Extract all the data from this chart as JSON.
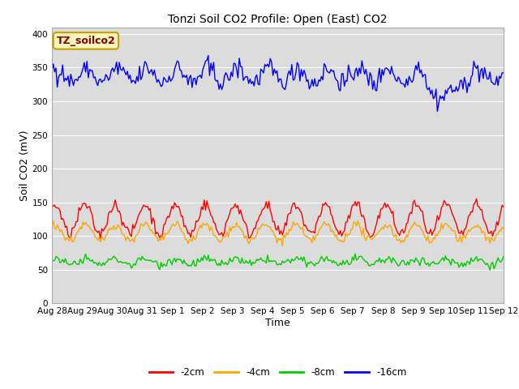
{
  "title": "Tonzi Soil CO2 Profile: Open (East) CO2",
  "xlabel": "Time",
  "ylabel": "Soil CO2 (mV)",
  "ylim": [
    0,
    410
  ],
  "yticks": [
    0,
    50,
    100,
    150,
    200,
    250,
    300,
    350,
    400
  ],
  "bg_color": "#dcdcdc",
  "legend_labels": [
    "-2cm",
    "-4cm",
    "-8cm",
    "-16cm"
  ],
  "legend_colors": [
    "#ff0000",
    "#ffa500",
    "#00cc00",
    "#0000ff"
  ],
  "annotation_text": "TZ_soilco2",
  "annotation_bg": "#f5f5be",
  "annotation_fg": "#8b0000",
  "annotation_border": "#c8a000",
  "n_points": 336,
  "seed": 42,
  "blue_mean": 338,
  "blue_amp": 12,
  "blue_noise": 7,
  "red_mean": 125,
  "red_amp": 22,
  "red_noise": 4,
  "orange_mean": 105,
  "orange_amp": 12,
  "orange_noise": 3,
  "green_mean": 62,
  "green_amp": 4,
  "green_noise": 3,
  "x_tick_labels": [
    "Aug 28",
    "Aug 29",
    "Aug 30",
    "Aug 31",
    "Sep 1",
    "Sep 2",
    "Sep 3",
    "Sep 4",
    "Sep 5",
    "Sep 6",
    "Sep 7",
    "Sep 8",
    "Sep 9",
    "Sep 10",
    "Sep 11",
    "Sep 12"
  ],
  "grid_color": "#ffffff",
  "line_width": 1.0,
  "title_fontsize": 10,
  "axis_label_fontsize": 9,
  "tick_fontsize": 7.5,
  "legend_fontsize": 8.5,
  "annotation_fontsize": 9
}
